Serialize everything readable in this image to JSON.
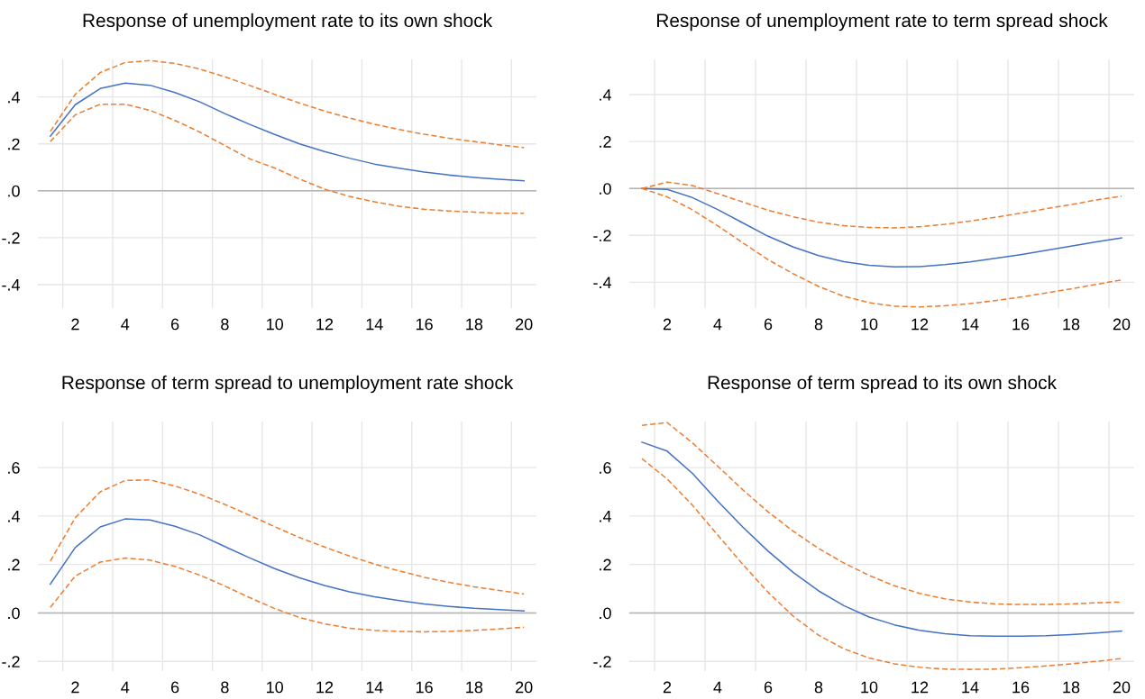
{
  "chart_data": [
    {
      "type": "line",
      "title": "Response of unemployment rate to its own shock",
      "x": [
        1,
        2,
        3,
        4,
        5,
        6,
        7,
        8,
        9,
        10,
        11,
        12,
        13,
        14,
        15,
        16,
        17,
        18,
        19,
        20
      ],
      "xlim": [
        0.5,
        20.5
      ],
      "ylim": [
        -0.5,
        0.56
      ],
      "xticks": [
        {
          "value": 1.5,
          "label": null
        },
        {
          "value": 2,
          "label": "2"
        },
        {
          "value": 3.5,
          "label": null
        },
        {
          "value": 4,
          "label": "4"
        },
        {
          "value": 5.5,
          "label": null
        },
        {
          "value": 6,
          "label": "6"
        },
        {
          "value": 7.5,
          "label": null
        },
        {
          "value": 8,
          "label": "8"
        },
        {
          "value": 9.5,
          "label": null
        },
        {
          "value": 10,
          "label": "10"
        },
        {
          "value": 11.5,
          "label": null
        },
        {
          "value": 12,
          "label": "12"
        },
        {
          "value": 13.5,
          "label": null
        },
        {
          "value": 14,
          "label": "14"
        },
        {
          "value": 15.5,
          "label": null
        },
        {
          "value": 16,
          "label": "16"
        },
        {
          "value": 17.5,
          "label": null
        },
        {
          "value": 18,
          "label": "18"
        },
        {
          "value": 19.5,
          "label": null
        },
        {
          "value": 20,
          "label": "20"
        }
      ],
      "yticks": [
        {
          "value": -0.4,
          "label": "-.4"
        },
        {
          "value": -0.2,
          "label": "-.2"
        },
        {
          "value": 0,
          "label": ".0"
        },
        {
          "value": 0.2,
          "label": ".2"
        },
        {
          "value": 0.4,
          "label": ".4"
        }
      ],
      "grid": true,
      "ref_lines": [
        {
          "axis": "y",
          "value": 0,
          "color": "#b4b4b4"
        }
      ],
      "series": [
        {
          "color": "#4472c4",
          "line_style": "solid",
          "values": [
            0.233,
            0.367,
            0.436,
            0.459,
            0.45,
            0.419,
            0.379,
            0.329,
            0.283,
            0.24,
            0.2,
            0.167,
            0.139,
            0.114,
            0.096,
            0.08,
            0.067,
            0.057,
            0.049,
            0.043
          ]
        },
        {
          "color": "#ed7d31",
          "line_style": "dashed",
          "values": [
            0.253,
            0.411,
            0.504,
            0.547,
            0.555,
            0.543,
            0.519,
            0.486,
            0.449,
            0.411,
            0.374,
            0.34,
            0.31,
            0.284,
            0.261,
            0.241,
            0.224,
            0.21,
            0.196,
            0.184
          ]
        },
        {
          "color": "#ed7d31",
          "line_style": "dashed",
          "values": [
            0.21,
            0.324,
            0.369,
            0.369,
            0.343,
            0.3,
            0.25,
            0.193,
            0.136,
            0.097,
            0.05,
            0.007,
            -0.024,
            -0.047,
            -0.066,
            -0.079,
            -0.086,
            -0.091,
            -0.096,
            -0.096
          ]
        }
      ]
    },
    {
      "type": "line",
      "title": "Response of unemployment rate to term spread shock",
      "x": [
        1,
        2,
        3,
        4,
        5,
        6,
        7,
        8,
        9,
        10,
        11,
        12,
        13,
        14,
        15,
        16,
        17,
        18,
        19,
        20
      ],
      "xlim": [
        0.5,
        20.5
      ],
      "ylim": [
        -0.51,
        0.55
      ],
      "xticks": [
        {
          "value": 1.5,
          "label": null
        },
        {
          "value": 2,
          "label": "2"
        },
        {
          "value": 3.5,
          "label": null
        },
        {
          "value": 4,
          "label": "4"
        },
        {
          "value": 5.5,
          "label": null
        },
        {
          "value": 6,
          "label": "6"
        },
        {
          "value": 7.5,
          "label": null
        },
        {
          "value": 8,
          "label": "8"
        },
        {
          "value": 9.5,
          "label": null
        },
        {
          "value": 10,
          "label": "10"
        },
        {
          "value": 11.5,
          "label": null
        },
        {
          "value": 12,
          "label": "12"
        },
        {
          "value": 13.5,
          "label": null
        },
        {
          "value": 14,
          "label": "14"
        },
        {
          "value": 15.5,
          "label": null
        },
        {
          "value": 16,
          "label": "16"
        },
        {
          "value": 17.5,
          "label": null
        },
        {
          "value": 18,
          "label": "18"
        },
        {
          "value": 19.5,
          "label": null
        },
        {
          "value": 20,
          "label": "20"
        }
      ],
      "yticks": [
        {
          "value": -0.4,
          "label": "-.4"
        },
        {
          "value": -0.2,
          "label": "-.2"
        },
        {
          "value": 0,
          "label": ".0"
        },
        {
          "value": 0.2,
          "label": ".2"
        },
        {
          "value": 0.4,
          "label": ".4"
        }
      ],
      "grid": true,
      "ref_lines": [
        {
          "axis": "y",
          "value": 0,
          "color": "#b4b4b4"
        }
      ],
      "series": [
        {
          "color": "#4472c4",
          "line_style": "solid",
          "values": [
            0,
            -0.004,
            -0.039,
            -0.09,
            -0.147,
            -0.204,
            -0.25,
            -0.286,
            -0.312,
            -0.328,
            -0.334,
            -0.333,
            -0.325,
            -0.313,
            -0.298,
            -0.282,
            -0.264,
            -0.246,
            -0.228,
            -0.211
          ]
        },
        {
          "color": "#ed7d31",
          "line_style": "dashed",
          "values": [
            0,
            0.027,
            0.012,
            -0.022,
            -0.058,
            -0.093,
            -0.121,
            -0.144,
            -0.159,
            -0.166,
            -0.168,
            -0.163,
            -0.153,
            -0.139,
            -0.123,
            -0.105,
            -0.087,
            -0.069,
            -0.049,
            -0.033
          ]
        },
        {
          "color": "#ed7d31",
          "line_style": "dashed",
          "values": [
            0,
            -0.036,
            -0.091,
            -0.159,
            -0.232,
            -0.304,
            -0.364,
            -0.418,
            -0.46,
            -0.487,
            -0.502,
            -0.505,
            -0.5,
            -0.491,
            -0.478,
            -0.463,
            -0.446,
            -0.428,
            -0.409,
            -0.39
          ]
        }
      ]
    },
    {
      "type": "line",
      "title": "Response of term spread to unemployment rate shock",
      "x": [
        1,
        2,
        3,
        4,
        5,
        6,
        7,
        8,
        9,
        10,
        11,
        12,
        13,
        14,
        15,
        16,
        17,
        18,
        19,
        20
      ],
      "xlim": [
        0.5,
        20.5
      ],
      "ylim": [
        -0.24,
        0.79
      ],
      "xticks": [
        {
          "value": 1.5,
          "label": null
        },
        {
          "value": 2,
          "label": "2"
        },
        {
          "value": 3.5,
          "label": null
        },
        {
          "value": 4,
          "label": "4"
        },
        {
          "value": 5.5,
          "label": null
        },
        {
          "value": 6,
          "label": "6"
        },
        {
          "value": 7.5,
          "label": null
        },
        {
          "value": 8,
          "label": "8"
        },
        {
          "value": 9.5,
          "label": null
        },
        {
          "value": 10,
          "label": "10"
        },
        {
          "value": 11.5,
          "label": null
        },
        {
          "value": 12,
          "label": "12"
        },
        {
          "value": 13.5,
          "label": null
        },
        {
          "value": 14,
          "label": "14"
        },
        {
          "value": 15.5,
          "label": null
        },
        {
          "value": 16,
          "label": "16"
        },
        {
          "value": 17.5,
          "label": null
        },
        {
          "value": 18,
          "label": "18"
        },
        {
          "value": 19.5,
          "label": null
        },
        {
          "value": 20,
          "label": "20"
        }
      ],
      "yticks": [
        {
          "value": -0.2,
          "label": "-.2"
        },
        {
          "value": 0,
          "label": ".0"
        },
        {
          "value": 0.2,
          "label": ".2"
        },
        {
          "value": 0.4,
          "label": ".4"
        },
        {
          "value": 0.6,
          "label": ".6"
        }
      ],
      "grid": true,
      "ref_lines": [
        {
          "axis": "y",
          "value": 0,
          "color": "#b4b4b4"
        }
      ],
      "series": [
        {
          "color": "#4472c4",
          "line_style": "solid",
          "values": [
            0.119,
            0.27,
            0.355,
            0.388,
            0.384,
            0.358,
            0.322,
            0.274,
            0.227,
            0.183,
            0.145,
            0.113,
            0.087,
            0.067,
            0.051,
            0.037,
            0.027,
            0.019,
            0.014,
            0.008
          ]
        },
        {
          "color": "#ed7d31",
          "line_style": "dashed",
          "values": [
            0.214,
            0.393,
            0.5,
            0.547,
            0.549,
            0.524,
            0.49,
            0.448,
            0.403,
            0.356,
            0.311,
            0.272,
            0.235,
            0.202,
            0.173,
            0.147,
            0.126,
            0.108,
            0.093,
            0.078
          ]
        },
        {
          "color": "#ed7d31",
          "line_style": "dashed",
          "values": [
            0.023,
            0.152,
            0.21,
            0.227,
            0.218,
            0.192,
            0.156,
            0.111,
            0.063,
            0.018,
            -0.019,
            -0.045,
            -0.063,
            -0.072,
            -0.076,
            -0.078,
            -0.076,
            -0.072,
            -0.066,
            -0.059
          ]
        }
      ]
    },
    {
      "type": "line",
      "title": "Response of term spread to its own shock",
      "x": [
        1,
        2,
        3,
        4,
        5,
        6,
        7,
        8,
        9,
        10,
        11,
        12,
        13,
        14,
        15,
        16,
        17,
        18,
        19,
        20
      ],
      "xlim": [
        0.5,
        20.5
      ],
      "ylim": [
        -0.24,
        0.79
      ],
      "xticks": [
        {
          "value": 1.5,
          "label": null
        },
        {
          "value": 2,
          "label": "2"
        },
        {
          "value": 3.5,
          "label": null
        },
        {
          "value": 4,
          "label": "4"
        },
        {
          "value": 5.5,
          "label": null
        },
        {
          "value": 6,
          "label": "6"
        },
        {
          "value": 7.5,
          "label": null
        },
        {
          "value": 8,
          "label": "8"
        },
        {
          "value": 9.5,
          "label": null
        },
        {
          "value": 10,
          "label": "10"
        },
        {
          "value": 11.5,
          "label": null
        },
        {
          "value": 12,
          "label": "12"
        },
        {
          "value": 13.5,
          "label": null
        },
        {
          "value": 14,
          "label": "14"
        },
        {
          "value": 15.5,
          "label": null
        },
        {
          "value": 16,
          "label": "16"
        },
        {
          "value": 17.5,
          "label": null
        },
        {
          "value": 18,
          "label": "18"
        },
        {
          "value": 19.5,
          "label": null
        },
        {
          "value": 20,
          "label": "20"
        }
      ],
      "yticks": [
        {
          "value": -0.2,
          "label": "-.2"
        },
        {
          "value": 0,
          "label": ".0"
        },
        {
          "value": 0.2,
          "label": ".2"
        },
        {
          "value": 0.4,
          "label": ".4"
        },
        {
          "value": 0.6,
          "label": ".6"
        }
      ],
      "grid": true,
      "ref_lines": [
        {
          "axis": "y",
          "value": 0,
          "color": "#b4b4b4"
        }
      ],
      "series": [
        {
          "color": "#4472c4",
          "line_style": "solid",
          "values": [
            0.705,
            0.668,
            0.576,
            0.462,
            0.354,
            0.255,
            0.167,
            0.091,
            0.03,
            -0.017,
            -0.049,
            -0.072,
            -0.086,
            -0.094,
            -0.096,
            -0.096,
            -0.094,
            -0.089,
            -0.083,
            -0.075
          ]
        },
        {
          "color": "#ed7d31",
          "line_style": "dashed",
          "values": [
            0.774,
            0.786,
            0.702,
            0.606,
            0.508,
            0.417,
            0.337,
            0.266,
            0.206,
            0.155,
            0.112,
            0.081,
            0.058,
            0.045,
            0.037,
            0.035,
            0.035,
            0.037,
            0.042,
            0.045
          ]
        },
        {
          "color": "#ed7d31",
          "line_style": "dashed",
          "values": [
            0.637,
            0.553,
            0.445,
            0.322,
            0.2,
            0.085,
            -0.014,
            -0.092,
            -0.148,
            -0.186,
            -0.21,
            -0.224,
            -0.232,
            -0.233,
            -0.232,
            -0.226,
            -0.219,
            -0.21,
            -0.2,
            -0.188
          ]
        }
      ]
    }
  ]
}
